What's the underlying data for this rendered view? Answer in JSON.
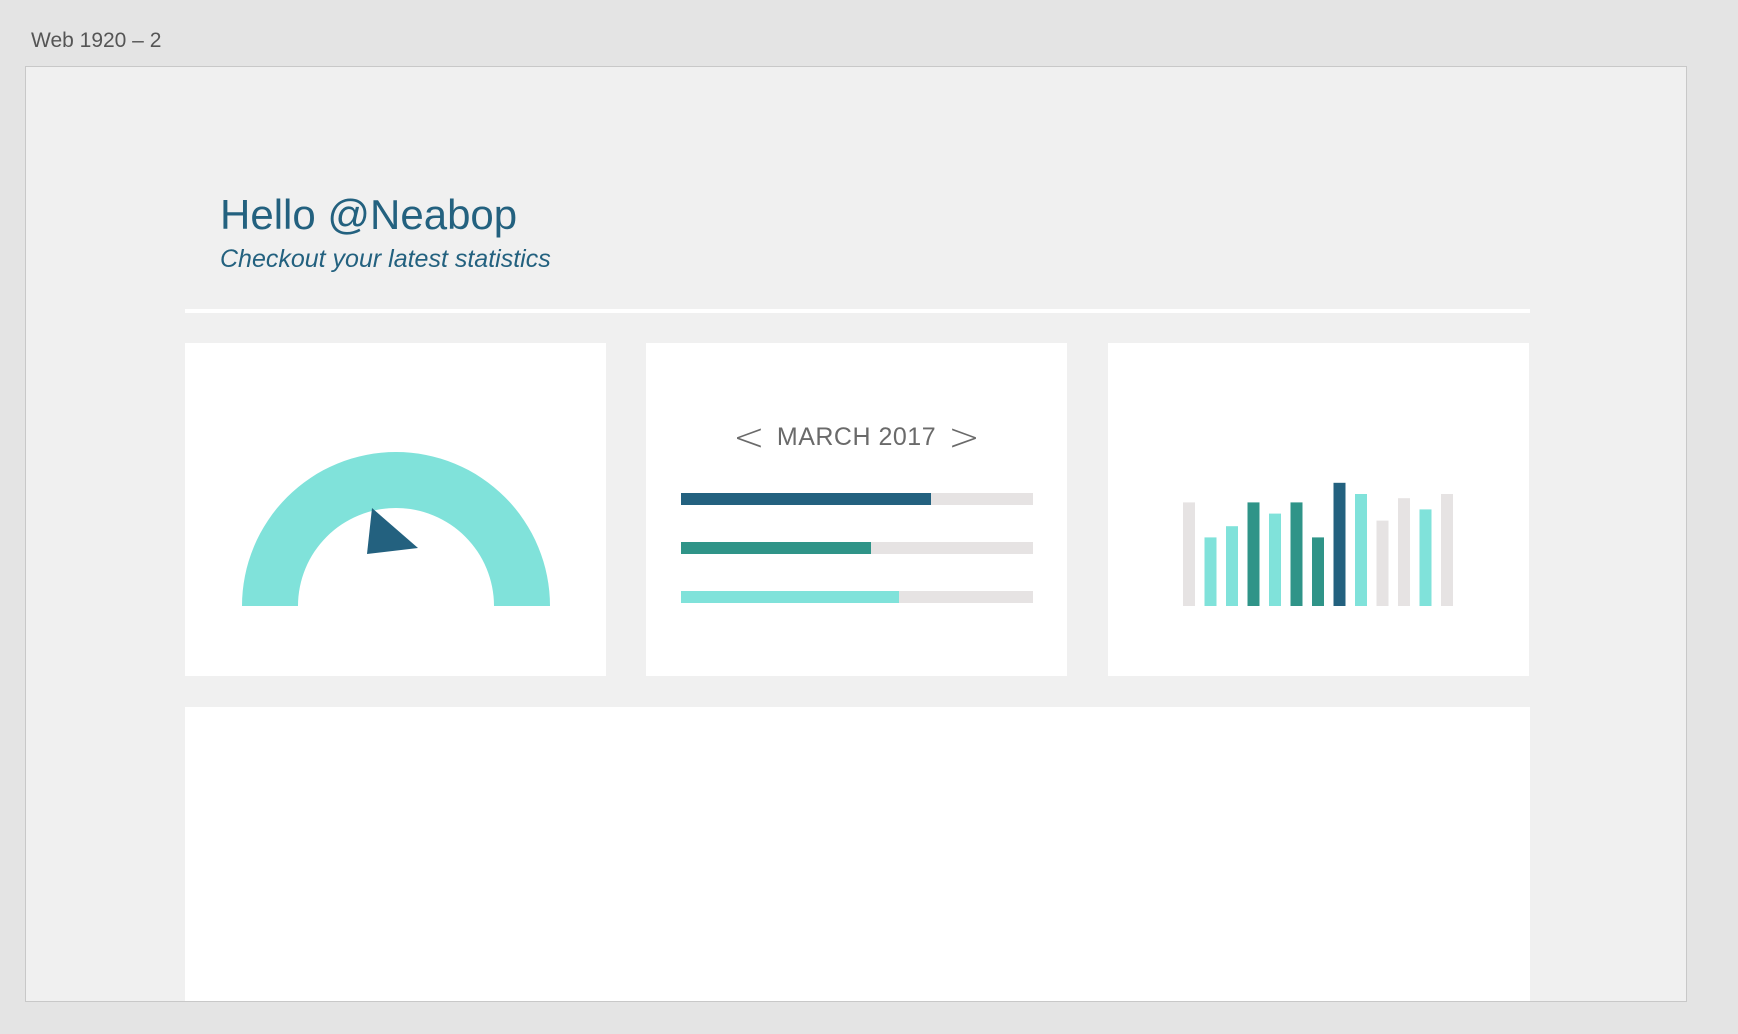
{
  "artboard": {
    "label": "Web 1920 – 2"
  },
  "header": {
    "greeting": "Hello @Neabop",
    "subtitle": "Checkout your latest statistics"
  },
  "colors": {
    "navy": "#23617f",
    "teal": "#2f9488",
    "aqua": "#80e2da",
    "track": "#e6e3e3"
  },
  "gauge": {
    "color": "#80e2da",
    "needle_color": "#23617f",
    "needle_icon": "triangle-pointer-icon"
  },
  "month_card": {
    "prev_icon": "chevron-left-icon",
    "next_icon": "chevron-right-icon",
    "prev_symbol": "<",
    "next_symbol": ">",
    "month": "MARCH 2017",
    "progress": [
      {
        "value": 0.71,
        "color": "#23617f"
      },
      {
        "value": 0.54,
        "color": "#2f9488"
      },
      {
        "value": 0.62,
        "color": "#80e2da"
      }
    ]
  },
  "chart_data": {
    "type": "bar",
    "values": [
      0.74,
      0.49,
      0.57,
      0.74,
      0.66,
      0.74,
      0.49,
      0.88,
      0.8,
      0.61,
      0.77,
      0.69,
      0.8
    ],
    "colors": [
      "#e6e3e3",
      "#80e2da",
      "#80e2da",
      "#2f9488",
      "#80e2da",
      "#2f9488",
      "#2f9488",
      "#23617f",
      "#80e2da",
      "#e6e3e3",
      "#e6e3e3",
      "#80e2da",
      "#e6e3e3"
    ],
    "ylim": [
      0,
      1
    ],
    "grid": false
  }
}
